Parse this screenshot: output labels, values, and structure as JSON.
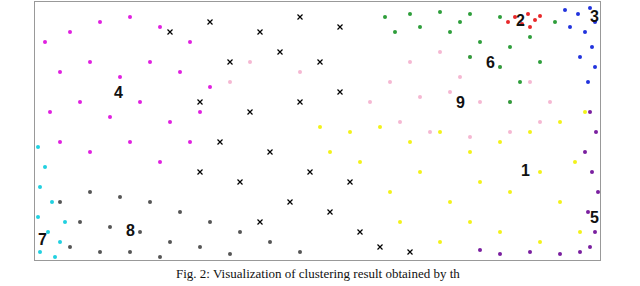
{
  "chart_data": {
    "type": "scatter",
    "caption": "Fig. 2: Visualization of clustering result obtained by th",
    "xlim": [
      35,
      600
    ],
    "ylim": [
      0,
      258
    ],
    "xticks": [],
    "yticks": [],
    "tick_labels": false,
    "grid": false,
    "series": [
      {
        "color": "#f2f21a",
        "marker": "circle",
        "x": [
          320,
          350,
          380,
          410,
          440,
          470,
          500,
          530,
          560,
          585,
          540,
          510,
          560,
          480,
          450,
          420,
          580,
          540,
          500,
          470,
          440,
          400,
          575,
          330,
          360,
          390
        ],
        "values": [
          133,
          128,
          133,
          118,
          128,
          108,
          118,
          128,
          138,
          148,
          88,
          68,
          58,
          78,
          58,
          88,
          28,
          18,
          28,
          38,
          18,
          38,
          98,
          108,
          98,
          68
        ]
      },
      {
        "color": "#f5b8d2",
        "marker": "circle",
        "x": [
          370,
          390,
          410,
          440,
          470,
          500,
          530,
          550,
          540,
          510,
          470,
          430,
          400,
          450,
          480,
          420,
          510,
          460,
          250,
          230,
          300
        ],
        "values": [
          158,
          178,
          198,
          208,
          203,
          193,
          178,
          158,
          138,
          128,
          123,
          128,
          138,
          168,
          158,
          163,
          158,
          183,
          198,
          178,
          188
        ]
      },
      {
        "color": "#2e9e3a",
        "marker": "circle",
        "x": [
          385,
          410,
          440,
          470,
          500,
          530,
          555,
          420,
          450,
          480,
          510,
          470,
          500,
          520,
          510,
          540,
          460,
          395
        ],
        "values": [
          243,
          246,
          248,
          246,
          243,
          223,
          238,
          233,
          228,
          218,
          213,
          203,
          193,
          178,
          158,
          198,
          238,
          228
        ]
      },
      {
        "color": "#e8282a",
        "marker": "circle",
        "x": [
          508,
          515,
          522,
          528,
          535,
          540,
          530
        ],
        "values": [
          238,
          243,
          236,
          246,
          240,
          244,
          233
        ]
      },
      {
        "color": "#2233dd",
        "marker": "circle",
        "x": [
          565,
          578,
          590,
          595,
          585,
          592,
          580,
          595,
          588,
          570
        ],
        "values": [
          250,
          246,
          252,
          238,
          228,
          213,
          203,
          193,
          178,
          233
        ]
      },
      {
        "color": "#7a1fa0",
        "marker": "circle",
        "x": [
          590,
          596,
          585,
          592,
          598,
          588,
          595,
          580,
          560,
          530,
          500,
          480,
          590
        ],
        "values": [
          148,
          128,
          108,
          88,
          68,
          48,
          28,
          8,
          6,
          8,
          6,
          10,
          13
        ]
      },
      {
        "color": "#e020e0",
        "marker": "circle",
        "x": [
          45,
          70,
          100,
          130,
          160,
          190,
          60,
          90,
          120,
          150,
          180,
          210,
          50,
          80,
          110,
          140,
          170,
          200,
          60,
          90,
          130,
          160,
          190
        ],
        "values": [
          218,
          228,
          238,
          243,
          233,
          218,
          188,
          198,
          183,
          198,
          188,
          173,
          148,
          158,
          143,
          158,
          138,
          148,
          118,
          108,
          118,
          98,
          118
        ]
      },
      {
        "color": "#22d0e0",
        "marker": "circle",
        "x": [
          38,
          45,
          40,
          52,
          38,
          48,
          60,
          40,
          55,
          65
        ],
        "values": [
          113,
          93,
          73,
          58,
          43,
          28,
          18,
          8,
          3,
          38
        ]
      },
      {
        "color": "#555555",
        "marker": "circle",
        "x": [
          60,
          90,
          120,
          150,
          180,
          210,
          240,
          270,
          300,
          80,
          110,
          140,
          170,
          200,
          100,
          130,
          160,
          230,
          70
        ],
        "values": [
          58,
          68,
          63,
          58,
          48,
          38,
          28,
          18,
          8,
          38,
          33,
          28,
          18,
          13,
          8,
          8,
          3,
          6,
          13
        ]
      },
      {
        "color": "#000000",
        "marker": "x",
        "x": [
          170,
          210,
          260,
          300,
          340,
          230,
          280,
          320,
          200,
          250,
          300,
          340,
          220,
          270,
          310,
          240,
          290,
          330,
          360,
          260,
          200,
          350,
          380,
          410
        ],
        "values": [
          228,
          238,
          228,
          243,
          233,
          198,
          208,
          198,
          158,
          148,
          158,
          168,
          118,
          108,
          88,
          78,
          58,
          48,
          28,
          38,
          88,
          78,
          13,
          8
        ]
      }
    ],
    "annotations": [
      {
        "text": "1",
        "x": 525,
        "y": 90
      },
      {
        "text": "2",
        "x": 520,
        "y": 240
      },
      {
        "text": "3",
        "x": 594,
        "y": 244
      },
      {
        "text": "4",
        "x": 118,
        "y": 168
      },
      {
        "text": "5",
        "x": 594,
        "y": 43
      },
      {
        "text": "6",
        "x": 490,
        "y": 198
      },
      {
        "text": "7",
        "x": 42,
        "y": 21
      },
      {
        "text": "8",
        "x": 130,
        "y": 30
      },
      {
        "text": "9",
        "x": 460,
        "y": 158
      }
    ]
  }
}
